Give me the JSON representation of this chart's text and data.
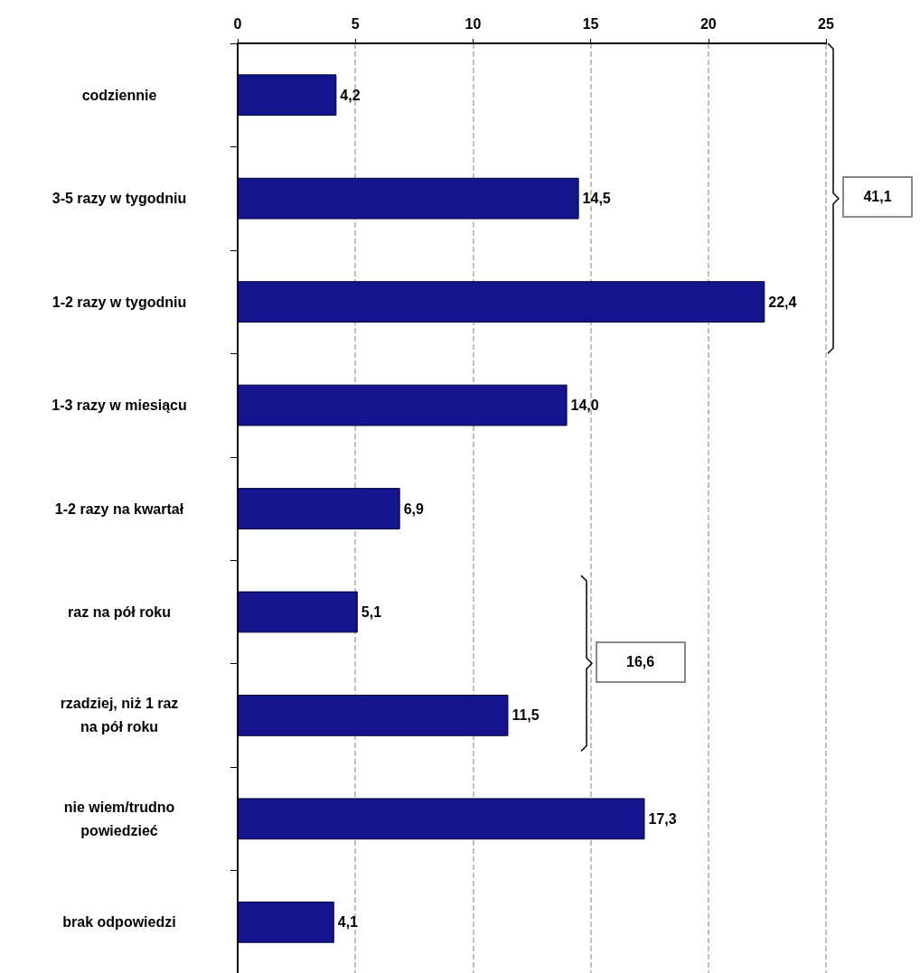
{
  "chart_data": {
    "type": "bar",
    "orientation": "horizontal",
    "categories": [
      "codziennie",
      "3-5 razy w tygodniu",
      "1-2 razy w tygodniu",
      "1-3 razy w miesiącu",
      "1-2 razy na kwartał",
      "raz na pół roku",
      "rzadziej, niż 1 raz\nna pół roku",
      "nie wiem/trudno\npowiedzieć",
      "brak odpowiedzi"
    ],
    "values": [
      4.2,
      14.5,
      22.4,
      14.0,
      6.9,
      5.1,
      11.5,
      17.3,
      4.1
    ],
    "value_labels": [
      "4,2",
      "14,5",
      "22,4",
      "14,0",
      "6,9",
      "5,1",
      "11,5",
      "17,3",
      "4,1"
    ],
    "color": "#14148c",
    "xlim": [
      0,
      25
    ],
    "xticks": [
      0,
      5,
      10,
      15,
      20,
      25
    ],
    "grid": "x",
    "annotations": [
      "41,1",
      "16,6"
    ]
  }
}
